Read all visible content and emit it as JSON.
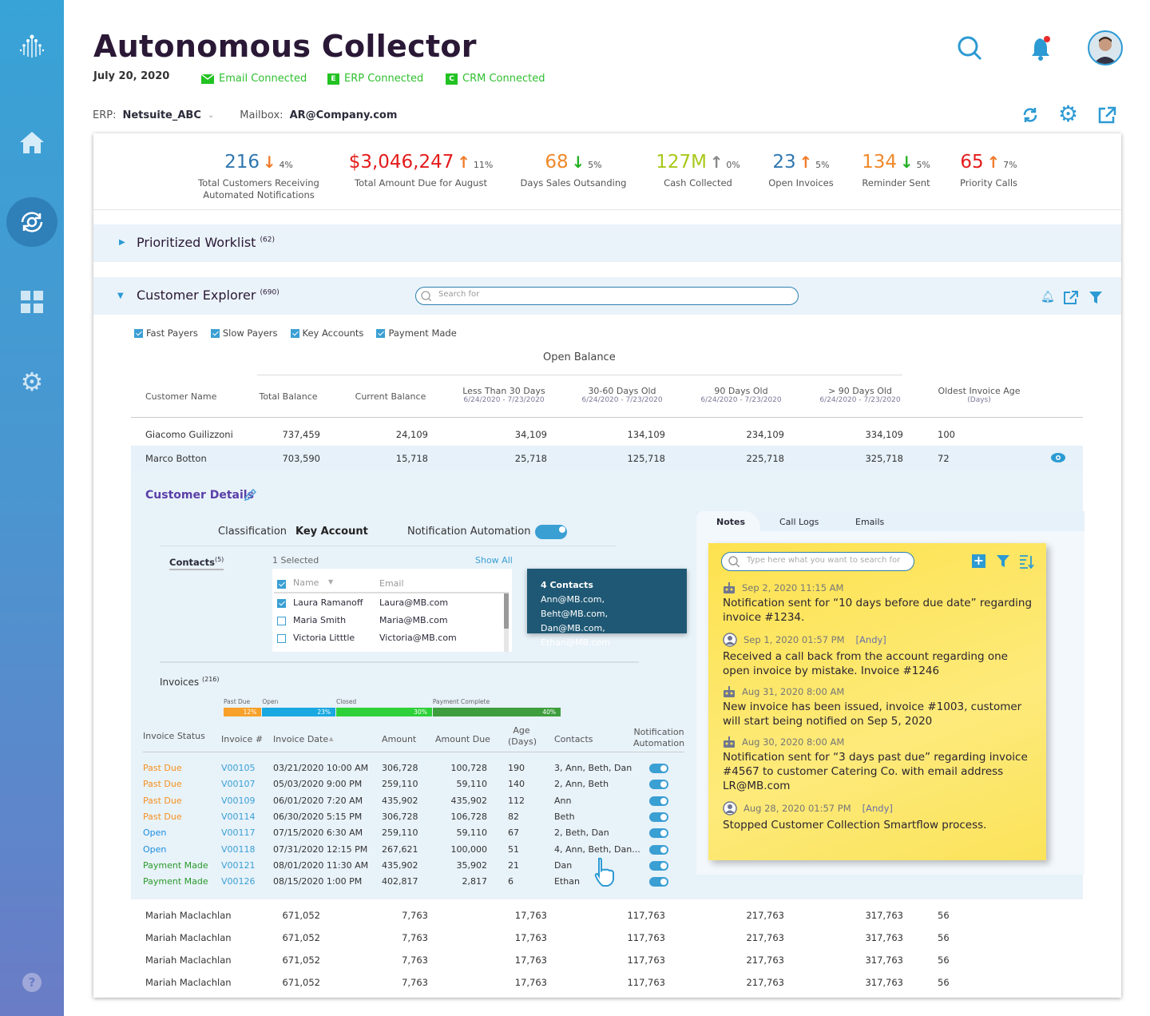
{
  "header": {
    "title": "Autonomous Collector",
    "date": "July 20, 2020",
    "connections": [
      "Email Connected",
      "ERP Connected",
      "CRM Connected"
    ],
    "erp_label": "ERP:",
    "erp_value": "Netsuite_ABC",
    "mailbox_label": "Mailbox:",
    "mailbox_value": "AR@Company.com"
  },
  "kpis": [
    {
      "value": "216",
      "dir": "down",
      "pct": "4%",
      "label": "Total Customers Receiving Automated Notifications",
      "color": "#2f77b0",
      "arrow": "#f07b2a"
    },
    {
      "value": "$3,046,247",
      "dir": "up",
      "pct": "11%",
      "label": "Total Amount Due for August",
      "color": "#e41b1b",
      "arrow": "#f07b2a"
    },
    {
      "value": "68",
      "dir": "down",
      "pct": "5%",
      "label": "Days Sales Outsanding",
      "color": "#f0892a",
      "arrow": "#22b022"
    },
    {
      "value": "127M",
      "dir": "up",
      "pct": "0%",
      "label": "Cash Collected",
      "color": "#a8c81a",
      "arrow": "#888888"
    },
    {
      "value": "23",
      "dir": "up",
      "pct": "5%",
      "label": "Open Invoices",
      "color": "#2f77b0",
      "arrow": "#f07b2a"
    },
    {
      "value": "134",
      "dir": "down",
      "pct": "5%",
      "label": "Reminder Sent",
      "color": "#f0892a",
      "arrow": "#22b022"
    },
    {
      "value": "65",
      "dir": "up",
      "pct": "7%",
      "label": "Priority Calls",
      "color": "#e41b1b",
      "arrow": "#f07b2a"
    }
  ],
  "worklist": {
    "title": "Prioritized Worklist",
    "count": "(62)"
  },
  "explorer": {
    "title": "Customer Explorer",
    "count": "(690)",
    "search_placeholder": "Search for",
    "filters": [
      {
        "label": "Fast Payers",
        "checked": true
      },
      {
        "label": "Slow Payers",
        "checked": true
      },
      {
        "label": "Key Accounts",
        "checked": true
      },
      {
        "label": "Payment Made",
        "checked": true
      }
    ],
    "group_header": "Open Balance",
    "columns": [
      {
        "label": "Customer Name",
        "sub": ""
      },
      {
        "label": "Total Balance",
        "sub": ""
      },
      {
        "label": "Current Balance",
        "sub": ""
      },
      {
        "label": "Less Than 30 Days",
        "sub": "6/24/2020 - 7/23/2020"
      },
      {
        "label": "30-60 Days Old",
        "sub": "6/24/2020 - 7/23/2020"
      },
      {
        "label": "90 Days Old",
        "sub": "6/24/2020 - 7/23/2020"
      },
      {
        "label": "> 90 Days  Old",
        "sub": "6/24/2020 - 7/23/2020"
      },
      {
        "label": "Oldest Invoice Age",
        "sub": "(Days)"
      }
    ],
    "rows": [
      [
        "Giacomo Guilizzoni",
        "737,459",
        "24,109",
        "34,109",
        "134,109",
        "234,109",
        "334,109",
        "100"
      ],
      [
        "Marco Botton",
        "703,590",
        "15,718",
        "25,718",
        "125,718",
        "225,718",
        "325,718",
        "72"
      ]
    ],
    "bottom_rows": [
      [
        "Mariah Maclachlan",
        "671,052",
        "7,763",
        "17,763",
        "117,763",
        "217,763",
        "317,763",
        "56"
      ],
      [
        "Mariah Maclachlan",
        "671,052",
        "7,763",
        "17,763",
        "117,763",
        "217,763",
        "317,763",
        "56"
      ],
      [
        "Mariah Maclachlan",
        "671,052",
        "7,763",
        "17,763",
        "117,763",
        "217,763",
        "317,763",
        "56"
      ],
      [
        "Mariah Maclachlan",
        "671,052",
        "7,763",
        "17,763",
        "117,763",
        "217,763",
        "317,763",
        "56"
      ]
    ]
  },
  "details": {
    "title": "Customer Details",
    "classification_label": "Classification",
    "classification_value": "Key Account",
    "automation_label": "Notification Automation",
    "automation_on": true,
    "contacts_label": "Contacts",
    "contacts_count": "(5)",
    "selected": "1 Selected",
    "show_all": "Show All",
    "contact_cols": [
      "Name",
      "Email"
    ],
    "contacts": [
      {
        "name": "Laura Ramanoff",
        "email": "Laura@MB.com",
        "checked": true
      },
      {
        "name": "Maria Smith",
        "email": "Maria@MB.com",
        "checked": false
      },
      {
        "name": "Victoria Litttle",
        "email": "Victoria@MB.com",
        "checked": false
      }
    ],
    "invoices_label": "Invoices",
    "invoices_count": "(216)",
    "status_bar": [
      {
        "label": "Past Due",
        "pct": 12,
        "text": "12%",
        "color": "#f7a02a"
      },
      {
        "label": "Open",
        "pct": 23,
        "text": "23%",
        "color": "#1aa8e0"
      },
      {
        "label": "Closed",
        "pct": 30,
        "text": "30%",
        "color": "#2fd13a"
      },
      {
        "label": "Payment Complete",
        "pct": 40,
        "text": "40%",
        "color": "#3e9e3e"
      }
    ],
    "invoice_cols": [
      "Invoice Status",
      "Invoice #",
      "Invoice Date",
      "Amount",
      "Amount Due",
      "Age (Days)",
      "Contacts",
      "Notification Automation"
    ],
    "invoices": [
      {
        "status": "Past Due",
        "num": "V00105",
        "date": "03/21/2020 10:00 AM",
        "amount": "306,728",
        "due": "100,728",
        "age": "190",
        "contacts": "3, Ann, Beth, Dan"
      },
      {
        "status": "Past Due",
        "num": "V00107",
        "date": "05/03/2020 9:00 PM",
        "amount": "259,110",
        "due": "59,110",
        "age": "140",
        "contacts": "2, Ann, Beth"
      },
      {
        "status": "Past Due",
        "num": "V00109",
        "date": "06/01/2020 7:20 AM",
        "amount": "435,902",
        "due": "435,902",
        "age": "112",
        "contacts": "Ann"
      },
      {
        "status": "Past Due",
        "num": "V00114",
        "date": "06/30/2020 5:15 PM",
        "amount": "306,728",
        "due": "106,728",
        "age": "82",
        "contacts": "Beth"
      },
      {
        "status": "Open",
        "num": "V00117",
        "date": "07/15/2020 6:30 AM",
        "amount": "259,110",
        "due": "59,110",
        "age": "67",
        "contacts": "2, Beth, Dan"
      },
      {
        "status": "Open",
        "num": "V00118",
        "date": "07/31/2020 12:15 PM",
        "amount": "267,621",
        "due": "100,000",
        "age": "51",
        "contacts": "4, Ann, Beth, Dan..."
      },
      {
        "status": "Payment Made",
        "num": "V00121",
        "date": "08/01/2020 11:30 AM",
        "amount": "435,902",
        "due": "35,902",
        "age": "21",
        "contacts": "Dan"
      },
      {
        "status": "Payment Made",
        "num": "V00126",
        "date": "08/15/2020 1:00 PM",
        "amount": "402,817",
        "due": "2,817",
        "age": "6",
        "contacts": "Ethan"
      }
    ],
    "status_colors": {
      "Past Due": "#f5901e",
      "Open": "#1a8fe0",
      "Payment Made": "#2a9a2a"
    },
    "tooltip": {
      "title": "4 Contacts",
      "body": "Ann@MB.com, Beht@MB.com, Dan@MB.com, Ethan@MB.com"
    }
  },
  "notes": {
    "tabs": [
      "Notes",
      "Call Logs",
      "Emails"
    ],
    "search_placeholder": "Type here what you want to search for",
    "items": [
      {
        "type": "bot",
        "date": "Sep 2, 2020  11:15 AM",
        "author": "",
        "text": "Notification sent for “10 days before due date” regarding invoice #1234."
      },
      {
        "type": "user",
        "date": "Sep 1, 2020  01:57 PM",
        "author": "[Andy]",
        "text": "Received a call back from the account regarding one open invoice by mistake. Invoice #1246"
      },
      {
        "type": "bot",
        "date": "Aug 31, 2020  8:00 AM",
        "author": "",
        "text": "New invoice has been issued, invoice #1003, customer will start being notified on Sep 5, 2020"
      },
      {
        "type": "bot",
        "date": "Aug 30, 2020  8:00 AM",
        "author": "",
        "text": "Notification sent for “3 days past due” regarding invoice #4567 to customer Catering Co. with email address LR@MB.com"
      },
      {
        "type": "user",
        "date": "Aug 28, 2020  01:57 PM",
        "author": "[Andy]",
        "text": "Stopped Customer Collection Smartflow process."
      }
    ]
  }
}
